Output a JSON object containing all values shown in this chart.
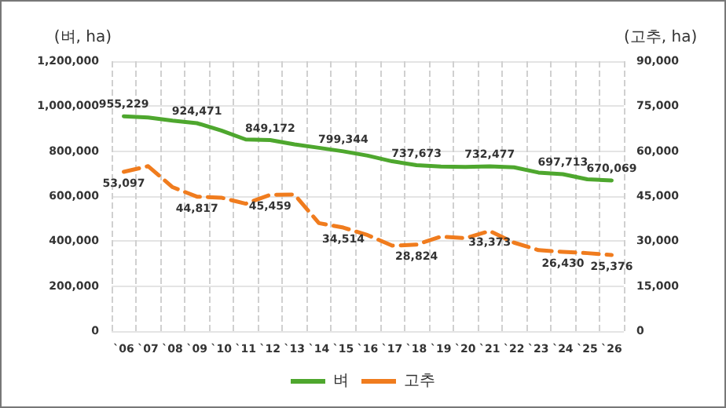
{
  "chart_data": {
    "type": "line",
    "ylabel": "(벼, ha)",
    "y2label": "(고추, ha)",
    "categories": [
      "`06",
      "`07",
      "`08",
      "`09",
      "`10",
      "`11",
      "`12",
      "`13",
      "`14",
      "`15",
      "`16",
      "`17",
      "`18",
      "`19",
      "`20",
      "`21",
      "`22",
      "`23",
      "`24",
      "`25",
      "`26"
    ],
    "series": [
      {
        "name": "벼",
        "color": "#4ea72e",
        "line_style": "solid",
        "values": [
          955229,
          950000,
          936000,
          924471,
          892000,
          852000,
          849172,
          830000,
          815000,
          799344,
          780000,
          755000,
          737673,
          732000,
          730000,
          732477,
          728000,
          705000,
          697713,
          675000,
          670069
        ],
        "value_labels": [
          "955,229",
          null,
          null,
          "924,471",
          null,
          null,
          "849,172",
          null,
          null,
          "799,344",
          null,
          null,
          "737,673",
          null,
          null,
          "732,477",
          null,
          null,
          "697,713",
          null,
          "670,069"
        ]
      },
      {
        "name": "고추",
        "color": "#f07c1e",
        "line_style": "dashed",
        "axis": "y2",
        "values": [
          53097,
          55000,
          48000,
          44817,
          44500,
          42500,
          45459,
          45500,
          36000,
          34514,
          32000,
          28500,
          28824,
          31500,
          31000,
          33373,
          29500,
          27000,
          26430,
          26000,
          25376
        ],
        "value_labels": [
          "53,097",
          null,
          null,
          "44,817",
          null,
          null,
          "45,459",
          null,
          null,
          "34,514",
          null,
          null,
          "28,824",
          null,
          null,
          "33,373",
          null,
          null,
          "26,430",
          null,
          "25,376"
        ]
      }
    ],
    "ylim": [
      0,
      1200000
    ],
    "yticks": [
      0,
      {
        "value": 200000,
        "label": "200,000"
      },
      {
        "value": 400000,
        "label": "400,000"
      },
      {
        "value": 600000,
        "label": "600,000"
      },
      {
        "value": 800000,
        "label": "800,000"
      },
      {
        "value": 1000000,
        "label": "1,000,000"
      },
      {
        "value": 1200000,
        "label": "1,200,000"
      }
    ],
    "y2lim": [
      0,
      90000
    ],
    "y2ticks": [
      0,
      {
        "value": 15000,
        "label": "15,000"
      },
      {
        "value": 30000,
        "label": "30,000"
      },
      {
        "value": 45000,
        "label": "45,000"
      },
      {
        "value": 60000,
        "label": "60,000"
      },
      {
        "value": 75000,
        "label": "75,000"
      },
      {
        "value": 90000,
        "label": "90,000"
      }
    ],
    "grid": true,
    "legend": "bottom",
    "marker": "none"
  }
}
